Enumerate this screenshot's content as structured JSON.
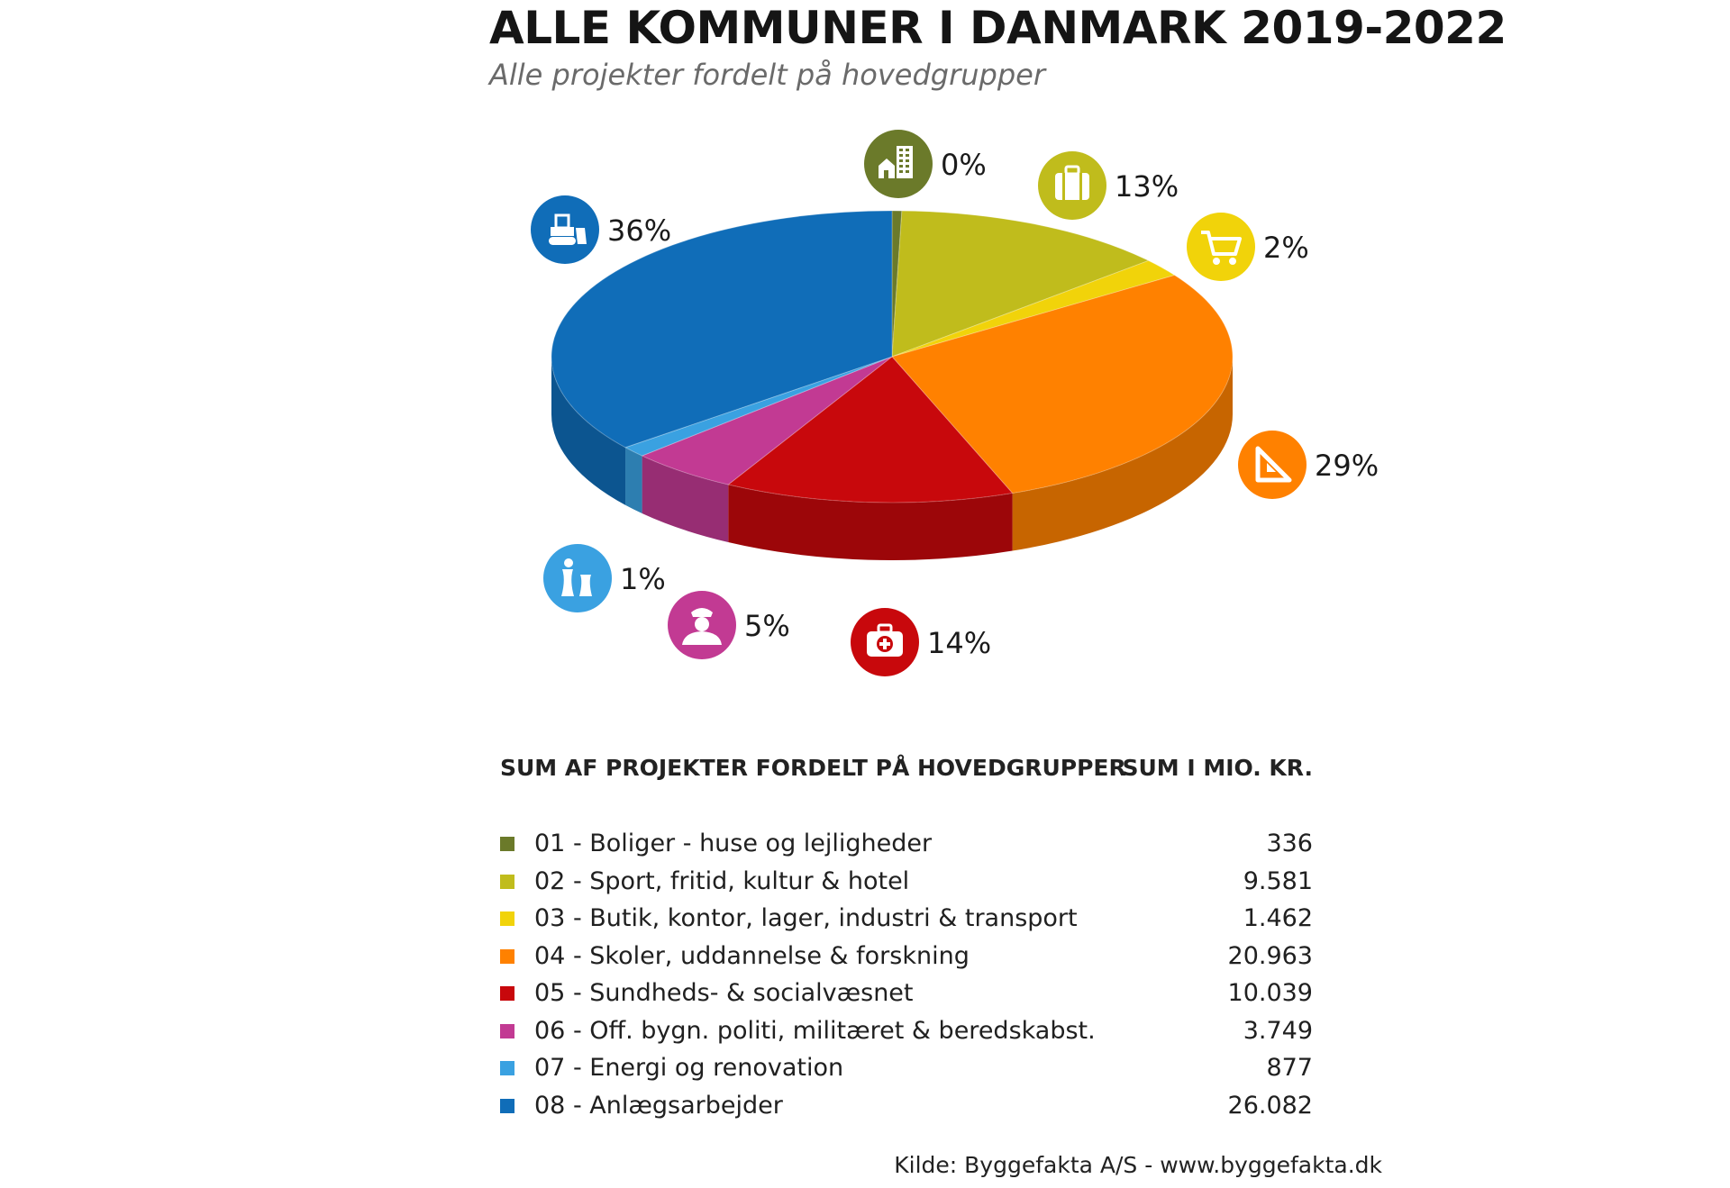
{
  "header": {
    "title": "ALLE KOMMUNER I DANMARK 2019-2022",
    "subtitle": "Alle projekter fordelt på hovedgrupper"
  },
  "table": {
    "left_header": "SUM AF PROJEKTER FORDELT PÅ HOVEDGRUPPER",
    "right_header": "SUM I MIO. KR."
  },
  "source": "Kilde: Byggefakta A/S - www.byggefakta.dk",
  "chart_data": {
    "type": "pie",
    "title": "ALLE KOMMUNER I DANMARK 2019-2022",
    "subtitle": "Alle projekter fordelt på hovedgrupper",
    "legend_placement": "bottom",
    "slices": [
      {
        "label": "01 - Boliger - huse og lejligheder",
        "value": 336,
        "value_text": "336",
        "percent_label": "0%",
        "color": "#6b7a2a",
        "icon": "buildings-icon"
      },
      {
        "label": "02 - Sport, fritid, kultur & hotel",
        "value": 9581,
        "value_text": "9.581",
        "percent_label": "13%",
        "color": "#c0bc1c",
        "icon": "suitcase-icon"
      },
      {
        "label": "03 - Butik, kontor, lager, industri & transport",
        "value": 1462,
        "value_text": "1.462",
        "percent_label": "2%",
        "color": "#f1d30a",
        "icon": "shopping-cart-icon"
      },
      {
        "label": "04 - Skoler, uddannelse & forskning",
        "value": 20963,
        "value_text": "20.963",
        "percent_label": "29%",
        "color": "#ff8100",
        "icon": "set-square-icon"
      },
      {
        "label": "05 - Sundheds- & socialvæsnet",
        "value": 10039,
        "value_text": "10.039",
        "percent_label": "14%",
        "color": "#c8080c",
        "icon": "first-aid-kit-icon"
      },
      {
        "label": "06 - Off. bygn. politi, militæret & beredskabst.",
        "value": 3749,
        "value_text": "3.749",
        "percent_label": "5%",
        "color": "#c23a93",
        "icon": "police-officer-icon"
      },
      {
        "label": "07 - Energi og renovation",
        "value": 877,
        "value_text": "877",
        "percent_label": "1%",
        "color": "#3aa1e1",
        "icon": "power-plant-icon"
      },
      {
        "label": "08 - Anlægsarbejder",
        "value": 26082,
        "value_text": "26.082",
        "percent_label": "36%",
        "color": "#106db8",
        "icon": "bulldozer-icon"
      }
    ]
  }
}
